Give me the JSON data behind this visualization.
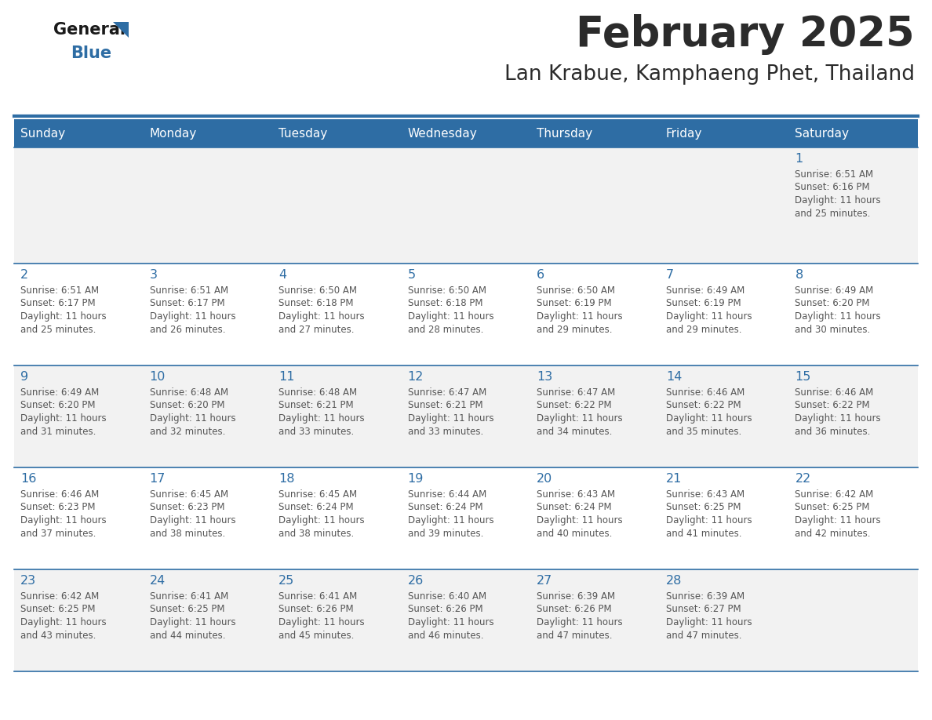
{
  "title": "February 2025",
  "subtitle": "Lan Krabue, Kamphaeng Phet, Thailand",
  "header_color": "#2e6da4",
  "header_text_color": "#ffffff",
  "day_names": [
    "Sunday",
    "Monday",
    "Tuesday",
    "Wednesday",
    "Thursday",
    "Friday",
    "Saturday"
  ],
  "background_color": "#ffffff",
  "cell_bg_row0": "#f2f2f2",
  "cell_bg_row1": "#ffffff",
  "cell_bg_row2": "#f2f2f2",
  "cell_bg_row3": "#ffffff",
  "cell_bg_row4": "#f2f2f2",
  "cell_border_color": "#2e6da4",
  "day_number_color": "#2e6da4",
  "text_color": "#555555",
  "logo_triangle_color": "#2e6da4",
  "days_data": [
    {
      "day": 1,
      "col": 6,
      "row": 0,
      "sunrise": "6:51 AM",
      "sunset": "6:16 PM",
      "daylight_hours": 11,
      "daylight_minutes": 25
    },
    {
      "day": 2,
      "col": 0,
      "row": 1,
      "sunrise": "6:51 AM",
      "sunset": "6:17 PM",
      "daylight_hours": 11,
      "daylight_minutes": 25
    },
    {
      "day": 3,
      "col": 1,
      "row": 1,
      "sunrise": "6:51 AM",
      "sunset": "6:17 PM",
      "daylight_hours": 11,
      "daylight_minutes": 26
    },
    {
      "day": 4,
      "col": 2,
      "row": 1,
      "sunrise": "6:50 AM",
      "sunset": "6:18 PM",
      "daylight_hours": 11,
      "daylight_minutes": 27
    },
    {
      "day": 5,
      "col": 3,
      "row": 1,
      "sunrise": "6:50 AM",
      "sunset": "6:18 PM",
      "daylight_hours": 11,
      "daylight_minutes": 28
    },
    {
      "day": 6,
      "col": 4,
      "row": 1,
      "sunrise": "6:50 AM",
      "sunset": "6:19 PM",
      "daylight_hours": 11,
      "daylight_minutes": 29
    },
    {
      "day": 7,
      "col": 5,
      "row": 1,
      "sunrise": "6:49 AM",
      "sunset": "6:19 PM",
      "daylight_hours": 11,
      "daylight_minutes": 29
    },
    {
      "day": 8,
      "col": 6,
      "row": 1,
      "sunrise": "6:49 AM",
      "sunset": "6:20 PM",
      "daylight_hours": 11,
      "daylight_minutes": 30
    },
    {
      "day": 9,
      "col": 0,
      "row": 2,
      "sunrise": "6:49 AM",
      "sunset": "6:20 PM",
      "daylight_hours": 11,
      "daylight_minutes": 31
    },
    {
      "day": 10,
      "col": 1,
      "row": 2,
      "sunrise": "6:48 AM",
      "sunset": "6:20 PM",
      "daylight_hours": 11,
      "daylight_minutes": 32
    },
    {
      "day": 11,
      "col": 2,
      "row": 2,
      "sunrise": "6:48 AM",
      "sunset": "6:21 PM",
      "daylight_hours": 11,
      "daylight_minutes": 33
    },
    {
      "day": 12,
      "col": 3,
      "row": 2,
      "sunrise": "6:47 AM",
      "sunset": "6:21 PM",
      "daylight_hours": 11,
      "daylight_minutes": 33
    },
    {
      "day": 13,
      "col": 4,
      "row": 2,
      "sunrise": "6:47 AM",
      "sunset": "6:22 PM",
      "daylight_hours": 11,
      "daylight_minutes": 34
    },
    {
      "day": 14,
      "col": 5,
      "row": 2,
      "sunrise": "6:46 AM",
      "sunset": "6:22 PM",
      "daylight_hours": 11,
      "daylight_minutes": 35
    },
    {
      "day": 15,
      "col": 6,
      "row": 2,
      "sunrise": "6:46 AM",
      "sunset": "6:22 PM",
      "daylight_hours": 11,
      "daylight_minutes": 36
    },
    {
      "day": 16,
      "col": 0,
      "row": 3,
      "sunrise": "6:46 AM",
      "sunset": "6:23 PM",
      "daylight_hours": 11,
      "daylight_minutes": 37
    },
    {
      "day": 17,
      "col": 1,
      "row": 3,
      "sunrise": "6:45 AM",
      "sunset": "6:23 PM",
      "daylight_hours": 11,
      "daylight_minutes": 38
    },
    {
      "day": 18,
      "col": 2,
      "row": 3,
      "sunrise": "6:45 AM",
      "sunset": "6:24 PM",
      "daylight_hours": 11,
      "daylight_minutes": 38
    },
    {
      "day": 19,
      "col": 3,
      "row": 3,
      "sunrise": "6:44 AM",
      "sunset": "6:24 PM",
      "daylight_hours": 11,
      "daylight_minutes": 39
    },
    {
      "day": 20,
      "col": 4,
      "row": 3,
      "sunrise": "6:43 AM",
      "sunset": "6:24 PM",
      "daylight_hours": 11,
      "daylight_minutes": 40
    },
    {
      "day": 21,
      "col": 5,
      "row": 3,
      "sunrise": "6:43 AM",
      "sunset": "6:25 PM",
      "daylight_hours": 11,
      "daylight_minutes": 41
    },
    {
      "day": 22,
      "col": 6,
      "row": 3,
      "sunrise": "6:42 AM",
      "sunset": "6:25 PM",
      "daylight_hours": 11,
      "daylight_minutes": 42
    },
    {
      "day": 23,
      "col": 0,
      "row": 4,
      "sunrise": "6:42 AM",
      "sunset": "6:25 PM",
      "daylight_hours": 11,
      "daylight_minutes": 43
    },
    {
      "day": 24,
      "col": 1,
      "row": 4,
      "sunrise": "6:41 AM",
      "sunset": "6:25 PM",
      "daylight_hours": 11,
      "daylight_minutes": 44
    },
    {
      "day": 25,
      "col": 2,
      "row": 4,
      "sunrise": "6:41 AM",
      "sunset": "6:26 PM",
      "daylight_hours": 11,
      "daylight_minutes": 45
    },
    {
      "day": 26,
      "col": 3,
      "row": 4,
      "sunrise": "6:40 AM",
      "sunset": "6:26 PM",
      "daylight_hours": 11,
      "daylight_minutes": 46
    },
    {
      "day": 27,
      "col": 4,
      "row": 4,
      "sunrise": "6:39 AM",
      "sunset": "6:26 PM",
      "daylight_hours": 11,
      "daylight_minutes": 47
    },
    {
      "day": 28,
      "col": 5,
      "row": 4,
      "sunrise": "6:39 AM",
      "sunset": "6:27 PM",
      "daylight_hours": 11,
      "daylight_minutes": 47
    }
  ]
}
